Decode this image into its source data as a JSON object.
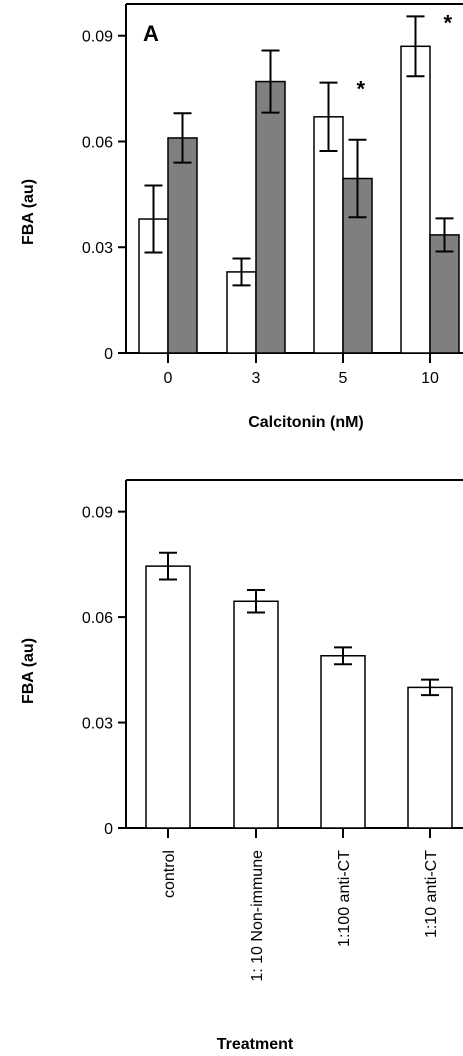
{
  "chart_data": [
    {
      "type": "bar",
      "panel_label": "A",
      "xlabel": "Calcitonin  (nM)",
      "ylabel": "FBA (au)",
      "ylim": [
        0,
        0.099
      ],
      "yticks": [
        "0",
        "0.03",
        "0.06",
        "0.09"
      ],
      "ytick_values": [
        0,
        0.03,
        0.06,
        0.09
      ],
      "categories": [
        "0",
        "3",
        "5",
        "10"
      ],
      "series": [
        {
          "fill": "#ffffff",
          "values": [
            0.038,
            0.023,
            0.067,
            0.087
          ],
          "errors": [
            0.0095,
            0.0038,
            0.0097,
            0.0085
          ]
        },
        {
          "fill": "#7f7f7f",
          "values": [
            0.061,
            0.077,
            0.0495,
            0.0335
          ],
          "errors": [
            0.007,
            0.0088,
            0.011,
            0.0047
          ]
        }
      ],
      "annotations": [
        {
          "text": "*",
          "category_index": 2,
          "series_index": 0
        },
        {
          "text": "*",
          "category_index": 3,
          "series_index": 0
        }
      ],
      "grid": false,
      "legend": "none"
    },
    {
      "type": "bar",
      "xlabel": "Treatment",
      "ylabel": "FBA (au)",
      "ylim": [
        0,
        0.099
      ],
      "yticks": [
        "0",
        "0.03",
        "0.06",
        "0.09"
      ],
      "ytick_values": [
        0,
        0.03,
        0.06,
        0.09
      ],
      "categories": [
        "control",
        "1: 10 Non-immune",
        "1:100 anti-CT",
        "1:10 anti-CT"
      ],
      "series": [
        {
          "fill": "#ffffff",
          "values": [
            0.0745,
            0.0645,
            0.049,
            0.04
          ],
          "errors": [
            0.0038,
            0.0032,
            0.0024,
            0.0022
          ]
        }
      ],
      "grid": false,
      "legend": "none"
    }
  ]
}
